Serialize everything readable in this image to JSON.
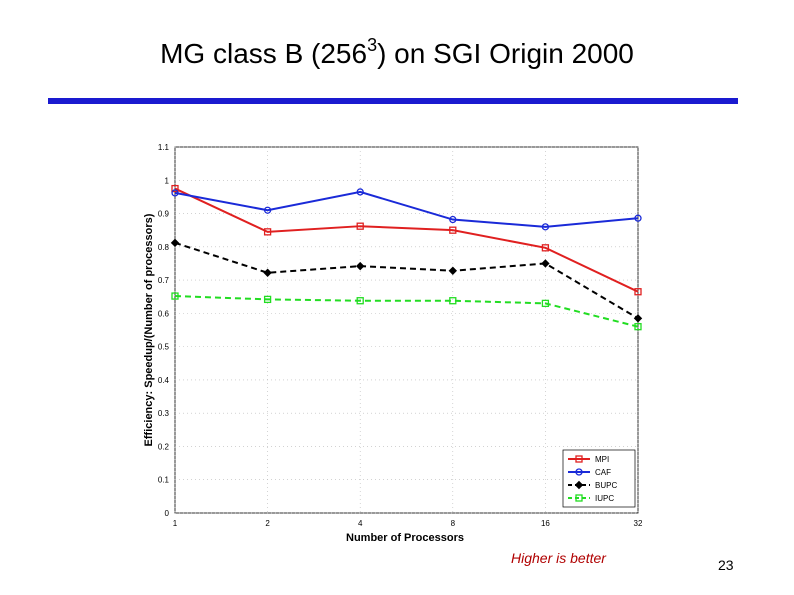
{
  "slide": {
    "title_main": "MG class B (256",
    "title_sup": "3",
    "title_end": ") on SGI Origin 2000",
    "note": "Higher is better",
    "page_number": "23"
  },
  "chart_data": {
    "type": "line",
    "xlabel": "Number of Processors",
    "ylabel": "Efficiency: Speedup/(Number of processors)",
    "categories": [
      "1",
      "2",
      "4",
      "8",
      "16",
      "32"
    ],
    "ylim": [
      0,
      1.1
    ],
    "yticks": [
      "0",
      "0.1",
      "0.2",
      "0.3",
      "0.4",
      "0.5",
      "0.6",
      "0.7",
      "0.8",
      "0.9",
      "1",
      "1.1"
    ],
    "grid": true,
    "legend_position": "bottom-right",
    "series": [
      {
        "name": "MPI",
        "values": [
          0.975,
          0.845,
          0.862,
          0.85,
          0.797,
          0.665
        ],
        "color": "#e02020",
        "dash": "solid",
        "marker": "square"
      },
      {
        "name": "CAF",
        "values": [
          0.962,
          0.91,
          0.965,
          0.882,
          0.86,
          0.886
        ],
        "color": "#1a2ad8",
        "dash": "solid",
        "marker": "circle"
      },
      {
        "name": "BUPC",
        "values": [
          0.812,
          0.722,
          0.742,
          0.728,
          0.75,
          0.585
        ],
        "color": "#000000",
        "dash": "dashed",
        "marker": "diamond"
      },
      {
        "name": "IUPC",
        "values": [
          0.652,
          0.642,
          0.638,
          0.638,
          0.63,
          0.56
        ],
        "color": "#22dd22",
        "dash": "dashed",
        "marker": "square"
      }
    ]
  }
}
